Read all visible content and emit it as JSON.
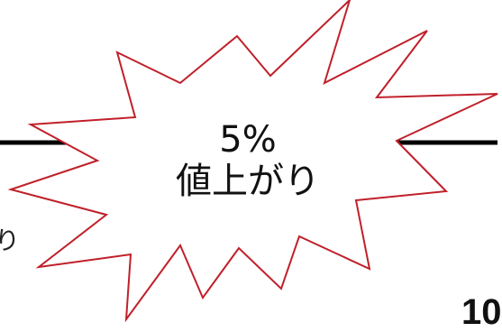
{
  "callout": {
    "line1": "5%",
    "line2": "値上がり"
  },
  "fragments": {
    "left": "り",
    "bottom_right": "10"
  },
  "colors": {
    "burst_stroke": "#c0202a",
    "burst_fill": "#ffffff",
    "divider": "#000000",
    "text": "#111111"
  }
}
